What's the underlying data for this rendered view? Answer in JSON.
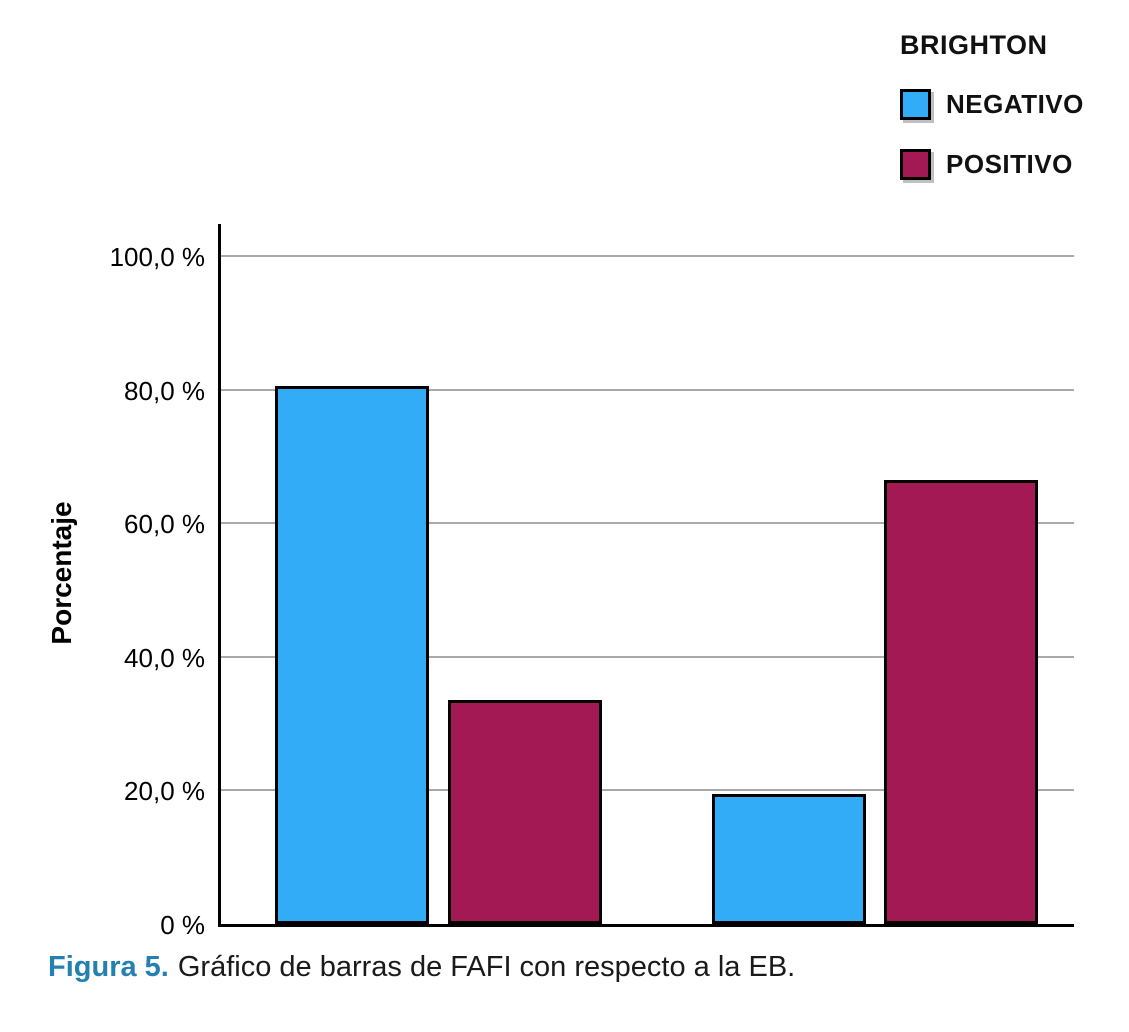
{
  "figure": {
    "caption_label": "Figura 5.",
    "caption_text": "Gráfico de barras de FAFI con respecto a la EB.",
    "caption_label_color": "#2380B0"
  },
  "chart_data": {
    "type": "bar",
    "title": "",
    "legend_title": "BRIGHTON",
    "legend_position": "top-right",
    "categories": [
      "",
      ""
    ],
    "series": [
      {
        "name": "NEGATIVO",
        "color": "#33ACF8",
        "values": [
          80.6,
          19.4
        ]
      },
      {
        "name": "POSITIVO",
        "color": "#A31953",
        "values": [
          33.5,
          66.5
        ]
      }
    ],
    "ylabel": "Porcentaje",
    "ylim": [
      0,
      100
    ],
    "yticks": [
      0,
      20,
      40,
      60,
      80,
      100
    ],
    "ytick_labels": [
      "0 %",
      "20,0 %",
      "40,0 %",
      "60,0 %",
      "80,0 %",
      "100,0 %"
    ],
    "grid": true,
    "gridline_color": "#A9A9A9",
    "axis_color": "#000000",
    "bar_border_color": "#000000"
  }
}
